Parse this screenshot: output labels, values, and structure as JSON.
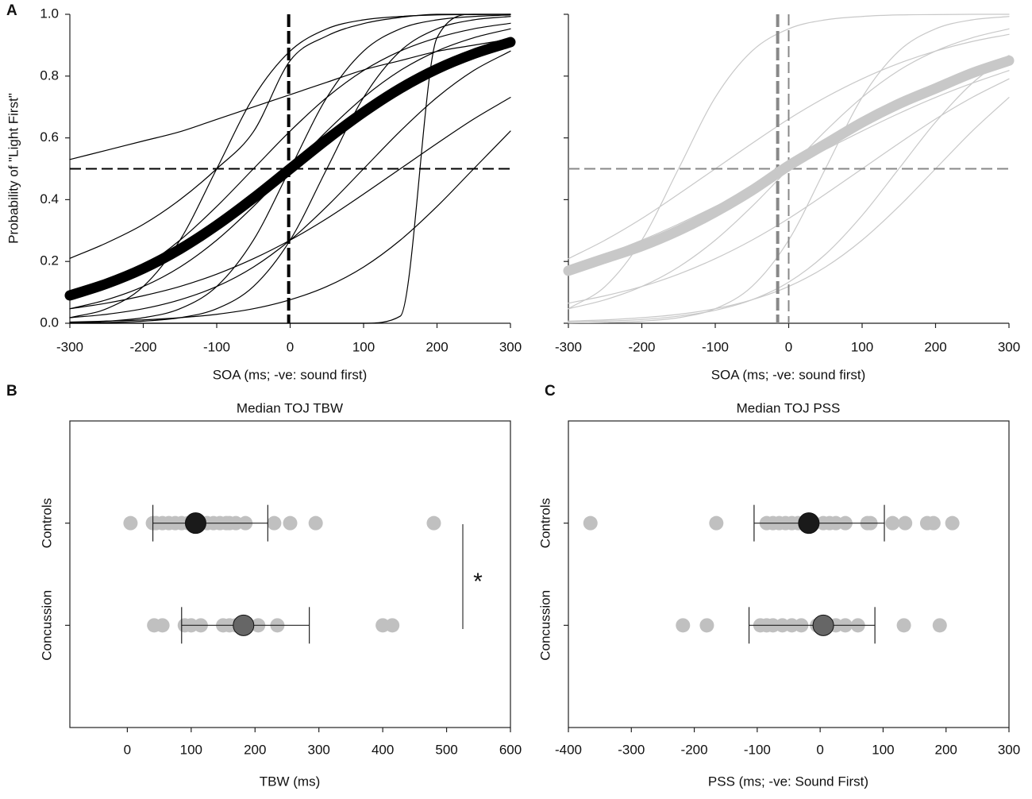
{
  "chart_data": [
    {
      "type": "line",
      "panel_label": "A",
      "ylabel": "Probability of \"Light First\"",
      "xlabel": "SOA (ms; -ve: sound first)",
      "xlim": [
        -300,
        300
      ],
      "ylim": [
        0,
        1
      ],
      "xticks": [
        -300,
        -200,
        -100,
        0,
        100,
        200,
        300
      ],
      "yticks": [
        {
          "value": 0,
          "label": "0.0"
        },
        0.2,
        0.4,
        0.6,
        0.8,
        {
          "value": 1,
          "label": "1.0"
        }
      ],
      "x": [
        -300,
        -250,
        -200,
        -150,
        -100,
        -50,
        0,
        50,
        100,
        150,
        200,
        250,
        300
      ],
      "series": [
        {
          "color": "#000000",
          "values": [
            0.0025,
            0.0067,
            0.018,
            0.047,
            0.119,
            0.269,
            0.5,
            0.731,
            0.881,
            0.953,
            0.982,
            0.993,
            0.998
          ]
        },
        {
          "color": "#000000",
          "values": [
            0.018,
            0.047,
            0.119,
            0.269,
            0.5,
            0.731,
            0.881,
            0.953,
            0.982,
            0.993,
            0.998,
            0.999,
            1.0
          ]
        },
        {
          "color": "#000000",
          "values": [
            0.001,
            0.0025,
            0.0067,
            0.018,
            0.047,
            0.119,
            0.269,
            0.5,
            0.731,
            0.881,
            0.953,
            0.982,
            0.993
          ]
        },
        {
          "color": "#000000",
          "values": [
            0.047,
            0.076,
            0.119,
            0.182,
            0.269,
            0.378,
            0.5,
            0.622,
            0.731,
            0.818,
            0.881,
            0.924,
            0.953
          ]
        },
        {
          "color": "#000000",
          "values": [
            0.018,
            0.029,
            0.047,
            0.076,
            0.119,
            0.182,
            0.269,
            0.378,
            0.5,
            0.622,
            0.731,
            0.818,
            0.881
          ]
        },
        {
          "color": "#000000",
          "values": [
            0.076,
            0.119,
            0.182,
            0.269,
            0.378,
            0.5,
            0.622,
            0.731,
            0.818,
            0.881,
            0.924,
            0.953,
            0.971
          ]
        },
        {
          "color": "#000000",
          "values": [
            0,
            0,
            0,
            0,
            0,
            0,
            0,
            0,
            0,
            0.023,
            0.924,
            1.0,
            1.0
          ]
        },
        {
          "color": "#000000",
          "values": [
            0.047,
            0.065,
            0.089,
            0.119,
            0.159,
            0.209,
            0.269,
            0.339,
            0.418,
            0.5,
            0.582,
            0.661,
            0.731
          ]
        },
        {
          "color": "#000000",
          "values": [
            0.53,
            0.56,
            0.59,
            0.62,
            0.66,
            0.7,
            0.74,
            0.78,
            0.82,
            0.85,
            0.88,
            0.9,
            0.92
          ]
        },
        {
          "color": "#000000",
          "values": [
            0.004,
            0.007,
            0.011,
            0.018,
            0.029,
            0.047,
            0.076,
            0.119,
            0.182,
            0.269,
            0.378,
            0.5,
            0.622
          ]
        },
        {
          "color": "#000000",
          "values": [
            0.21,
            0.26,
            0.32,
            0.4,
            0.5,
            0.62,
            0.85,
            0.93,
            0.97,
            0.99,
            1.0,
            1.0,
            1.0
          ]
        }
      ],
      "mean": {
        "color": "#000000",
        "values": [
          0.09,
          0.128,
          0.177,
          0.24,
          0.317,
          0.405,
          0.5,
          0.595,
          0.683,
          0.76,
          0.823,
          0.872,
          0.91
        ]
      },
      "hline": 0.5,
      "pss_line": -2,
      "vlines": [],
      "ref_color": "#000000"
    },
    {
      "type": "line",
      "xlabel": "SOA (ms; -ve: sound first)",
      "xlim": [
        -300,
        300
      ],
      "ylim": [
        0,
        1
      ],
      "xticks": [
        -300,
        -200,
        -100,
        0,
        100,
        200,
        300
      ],
      "yticks": [
        0,
        0.2,
        0.4,
        0.6,
        0.8,
        1
      ],
      "y_tick_labels": false,
      "x": [
        -300,
        -250,
        -200,
        -150,
        -100,
        -50,
        0,
        50,
        100,
        150,
        200,
        250,
        300
      ],
      "series": [
        {
          "color": "#c8c8c8",
          "values": [
            0.047,
            0.119,
            0.269,
            0.5,
            0.731,
            0.881,
            0.953,
            0.982,
            0.993,
            0.998,
            0.999,
            1.0,
            1.0
          ]
        },
        {
          "color": "#c8c8c8",
          "values": [
            0.047,
            0.076,
            0.119,
            0.182,
            0.269,
            0.378,
            0.5,
            0.622,
            0.731,
            0.818,
            0.881,
            0.924,
            0.953
          ]
        },
        {
          "color": "#c8c8c8",
          "values": [
            0.065,
            0.089,
            0.119,
            0.159,
            0.209,
            0.269,
            0.339,
            0.418,
            0.5,
            0.582,
            0.661,
            0.731,
            0.791
          ]
        },
        {
          "color": "#c8c8c8",
          "values": [
            0.001,
            0.0025,
            0.0067,
            0.018,
            0.047,
            0.119,
            0.269,
            0.5,
            0.731,
            0.881,
            0.953,
            0.982,
            0.993
          ]
        },
        {
          "color": "#c8c8c8",
          "values": [
            0.007,
            0.011,
            0.018,
            0.029,
            0.047,
            0.076,
            0.119,
            0.182,
            0.269,
            0.378,
            0.5,
            0.622,
            0.731
          ]
        },
        {
          "color": "#c8c8c8",
          "values": [
            0.209,
            0.269,
            0.339,
            0.418,
            0.5,
            0.582,
            0.661,
            0.731,
            0.791,
            0.841,
            0.881,
            0.912,
            0.935
          ]
        },
        {
          "color": "#c8c8c8",
          "values": [
            0.182,
            0.223,
            0.269,
            0.321,
            0.378,
            0.438,
            0.5,
            0.562,
            0.622,
            0.679,
            0.731,
            0.777,
            0.818
          ]
        },
        {
          "color": "#c8c8c8",
          "values": [
            0.004,
            0.007,
            0.012,
            0.023,
            0.042,
            0.076,
            0.133,
            0.223,
            0.349,
            0.5,
            0.651,
            0.777,
            0.867
          ]
        }
      ],
      "mean": {
        "color": "#c8c8c8",
        "values": [
          0.17,
          0.21,
          0.25,
          0.3,
          0.36,
          0.43,
          0.51,
          0.58,
          0.65,
          0.71,
          0.76,
          0.81,
          0.85
        ]
      },
      "hline": 0.5,
      "pss_line": -15,
      "vlines": [
        0
      ],
      "ref_color": "#888888"
    },
    {
      "type": "strip",
      "panel_label": "B",
      "title": "Median TOJ TBW",
      "xlabel": "TBW (ms)",
      "xlim": [
        -90,
        600
      ],
      "xticks": [
        0,
        100,
        200,
        300,
        400,
        500,
        600
      ],
      "categories": [
        "Controls",
        "Concussion"
      ],
      "point_color": "#c0c0c0",
      "annotation": "*",
      "groups": [
        {
          "points": [
            5,
            40,
            45,
            55,
            65,
            75,
            85,
            95,
            105,
            115,
            125,
            135,
            145,
            155,
            160,
            170,
            185,
            230,
            255,
            295,
            480
          ],
          "median": 107,
          "interval": [
            40,
            220
          ],
          "color": "#1a1a1a"
        },
        {
          "points": [
            42,
            55,
            90,
            100,
            115,
            150,
            160,
            170,
            185,
            205,
            235,
            400,
            415
          ],
          "median": 182,
          "interval": [
            85,
            285
          ],
          "color": "#666666"
        }
      ]
    },
    {
      "type": "strip",
      "panel_label": "C",
      "title": "Median TOJ PSS",
      "xlabel": "PSS (ms; -ve: Sound First)",
      "xlim": [
        -400,
        300
      ],
      "xticks": [
        -400,
        -300,
        -200,
        -100,
        0,
        100,
        200,
        300
      ],
      "categories": [
        "Controls",
        "Concussion"
      ],
      "point_color": "#c0c0c0",
      "groups": [
        {
          "points": [
            -365,
            -165,
            -85,
            -75,
            -65,
            -55,
            -45,
            -35,
            -25,
            -10,
            5,
            15,
            25,
            40,
            75,
            80,
            115,
            135,
            170,
            180,
            210
          ],
          "median": -18,
          "interval": [
            -105,
            102
          ],
          "color": "#1a1a1a"
        },
        {
          "points": [
            -218,
            -180,
            -95,
            -85,
            -75,
            -60,
            -45,
            -30,
            -5,
            10,
            25,
            40,
            60,
            133,
            190
          ],
          "median": 5,
          "interval": [
            -113,
            87
          ],
          "color": "#666666"
        }
      ]
    }
  ]
}
